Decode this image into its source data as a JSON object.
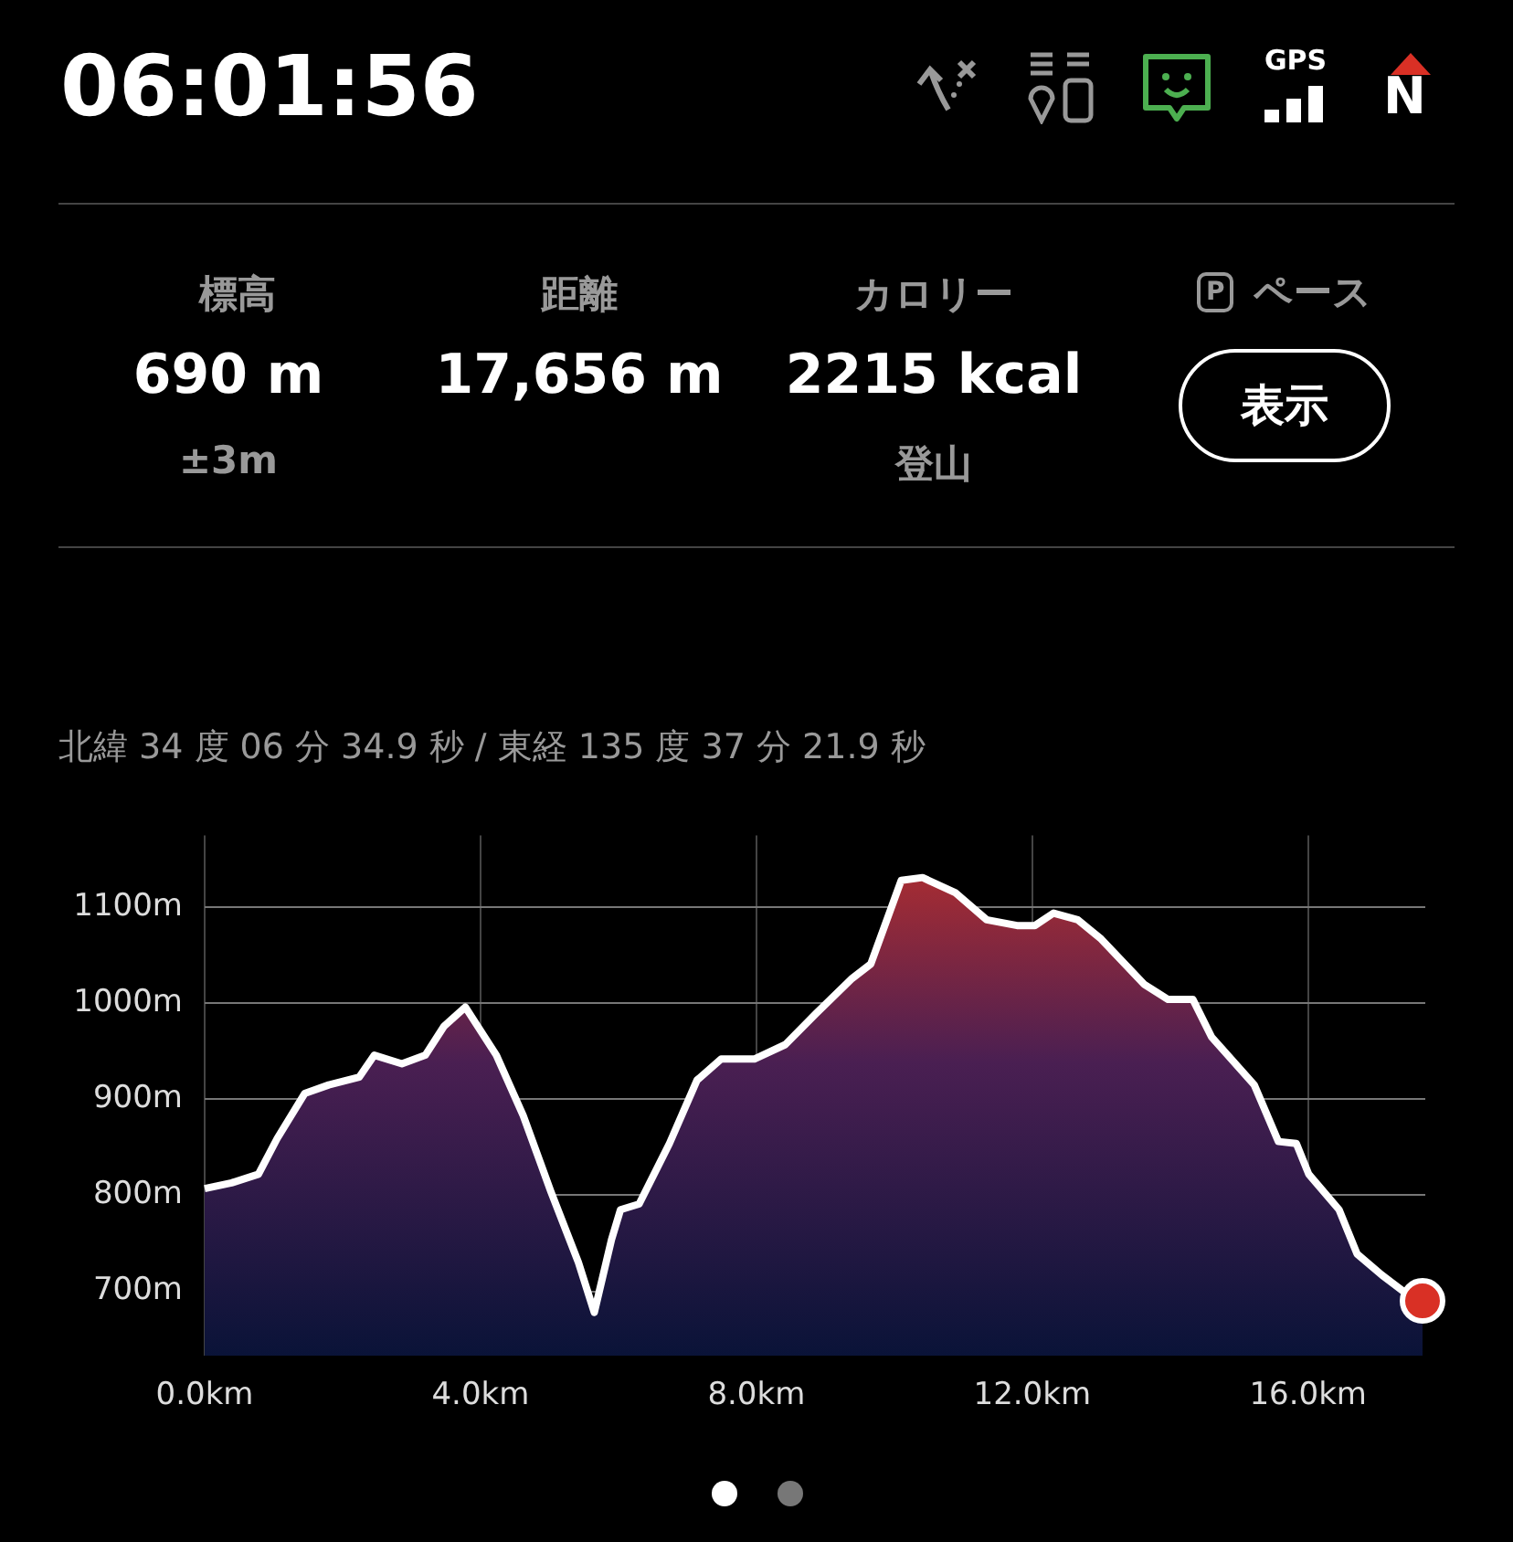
{
  "chart_data": {
    "type": "area",
    "subtitle": "北緯 34 度 06 分 34.9 秒 / 東経 135 度 37 分 21.9 秒",
    "annotations": [
      "06:01:56",
      "GPS",
      "N",
      "標高",
      "690 m",
      "±3m",
      "距離",
      "17,656 m",
      "カロリー",
      "2215 kcal",
      "登山",
      "P",
      "ペース",
      "表示"
    ],
    "xlim": [
      0,
      17.7
    ],
    "ylim": [
      633,
      1175
    ],
    "xticks": [
      {
        "value": 0,
        "label": "0.0km"
      },
      {
        "value": 4,
        "label": "4.0km"
      },
      {
        "value": 8,
        "label": "8.0km"
      },
      {
        "value": 12,
        "label": "12.0km"
      },
      {
        "value": 16,
        "label": "16.0km"
      }
    ],
    "yticks": [
      {
        "value": 700,
        "label": "700m"
      },
      {
        "value": 800,
        "label": "800m"
      },
      {
        "value": 900,
        "label": "900m"
      },
      {
        "value": 1000,
        "label": "1000m"
      },
      {
        "value": 1100,
        "label": "1100m"
      }
    ],
    "grid": true,
    "legend": false,
    "marker": "none",
    "line_style": "solid",
    "series": [
      {
        "color": "#ffffff",
        "x": [
          0,
          0.39,
          0.78,
          1.05,
          1.45,
          1.8,
          2.24,
          2.46,
          2.86,
          3.2,
          3.47,
          3.78,
          4.23,
          4.62,
          5.02,
          5.42,
          5.65,
          5.9,
          6.03,
          6.3,
          6.74,
          7.14,
          7.49,
          7.97,
          8.42,
          8.86,
          9.39,
          9.66,
          10.1,
          10.41,
          10.89,
          11.34,
          11.78,
          12.04,
          12.31,
          12.66,
          13.0,
          13.62,
          13.97,
          14.33,
          14.6,
          15.22,
          15.57,
          15.83,
          16.01,
          16.45,
          16.71,
          17.07,
          17.42,
          17.66
        ],
        "values": [
          807,
          813,
          822,
          859,
          906,
          915,
          923,
          946,
          937,
          946,
          976,
          996,
          946,
          883,
          804,
          730,
          678,
          754,
          785,
          791,
          854,
          920,
          942,
          942,
          957,
          989,
          1026,
          1041,
          1128,
          1131,
          1115,
          1087,
          1081,
          1081,
          1094,
          1087,
          1067,
          1020,
          1004,
          1004,
          965,
          915,
          856,
          854,
          822,
          785,
          739,
          717,
          698,
          690
        ]
      },
      {
        "type": "scatter",
        "color": "#d93025",
        "marker": "circle",
        "x": [
          17.66
        ],
        "values": [
          690
        ]
      }
    ]
  }
}
